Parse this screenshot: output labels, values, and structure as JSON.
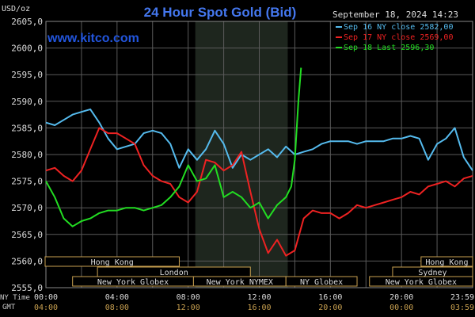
{
  "chart_data": {
    "type": "line",
    "title": "24 Hour Spot Gold (Bid)",
    "watermark": "www.kitco.com",
    "datetime": "September 18, 2024 14:23",
    "yunit": "USD/oz",
    "ylim": [
      2555.0,
      2605.0
    ],
    "yticks": [
      "2605,0",
      "2600,0",
      "2595,0",
      "2590,0",
      "2585,0",
      "2580,0",
      "2575,0",
      "2570,0",
      "2565,0",
      "2560,0",
      "2555,0"
    ],
    "xlim": [
      0,
      24
    ],
    "xticks_ny": [
      "00:00",
      "04:00",
      "08:00",
      "12:00",
      "16:00",
      "20:00",
      "23:59"
    ],
    "xticks_gmt": [
      "04:00",
      "08:00",
      "12:00",
      "16:00",
      "20:00",
      "00:00",
      "03:59"
    ],
    "ny_time_label": "NY Time",
    "gmt_label": "GMT",
    "shaded_hours": [
      8.4,
      13.6
    ],
    "grid": true,
    "legend_position": "top-right",
    "series": [
      {
        "name": "Sep 16 NY close 2582,00",
        "color": "#55bbee",
        "x": [
          0,
          0.5,
          1,
          1.5,
          2,
          2.5,
          3,
          3.5,
          4,
          4.5,
          5,
          5.5,
          6,
          6.5,
          7,
          7.5,
          8,
          8.5,
          9,
          9.5,
          10,
          10.5,
          11,
          11.5,
          12,
          12.5,
          13,
          13.5,
          14,
          14.5,
          15,
          15.5,
          16,
          16.5,
          17,
          17.5,
          18,
          18.5,
          19,
          19.5,
          20,
          20.5,
          21,
          21.5,
          22,
          22.5,
          23,
          23.5,
          24
        ],
        "y": [
          2586,
          2585.5,
          2586.5,
          2587.5,
          2588,
          2588.5,
          2586,
          2583,
          2581,
          2581.5,
          2582,
          2584,
          2584.5,
          2584,
          2582,
          2577.5,
          2581,
          2579,
          2581,
          2584.5,
          2582,
          2577.5,
          2580,
          2579,
          2580,
          2581,
          2579.5,
          2581.5,
          2580,
          2580.5,
          2581,
          2582,
          2582.5,
          2582.5,
          2582.5,
          2582,
          2582.5,
          2582.5,
          2582.5,
          2583,
          2583,
          2583.5,
          2583,
          2579,
          2582,
          2583,
          2585,
          2579.5,
          2577
        ]
      },
      {
        "name": "Sep 17 NY close 2569,00",
        "color": "#ee2222",
        "x": [
          0,
          0.5,
          1,
          1.5,
          2,
          2.5,
          3,
          3.5,
          4,
          4.5,
          5,
          5.5,
          6,
          6.5,
          7,
          7.5,
          8,
          8.5,
          9,
          9.5,
          10,
          10.5,
          11,
          11.5,
          12,
          12.5,
          13,
          13.5,
          14,
          14.5,
          15,
          15.5,
          16,
          16.5,
          17,
          17.5,
          18,
          18.5,
          19,
          19.5,
          20,
          20.5,
          21,
          21.5,
          22,
          22.5,
          23,
          23.5,
          24
        ],
        "y": [
          2577,
          2577.5,
          2576,
          2575,
          2577,
          2581,
          2585,
          2584,
          2584,
          2583,
          2582,
          2578,
          2576,
          2575,
          2574.5,
          2572,
          2571,
          2573,
          2579,
          2578.5,
          2577,
          2578,
          2580.5,
          2573,
          2566,
          2561.5,
          2564,
          2561,
          2562,
          2568,
          2569.5,
          2569,
          2569,
          2568,
          2569,
          2570.5,
          2570,
          2570.5,
          2571,
          2571.5,
          2572,
          2573,
          2572.5,
          2574,
          2574.5,
          2575,
          2574,
          2575.5,
          2576
        ]
      },
      {
        "name": "Sep 18 Last 2596,30",
        "color": "#22dd22",
        "x": [
          0,
          0.5,
          1,
          1.5,
          2,
          2.5,
          3,
          3.5,
          4,
          4.5,
          5,
          5.5,
          6,
          6.5,
          7,
          7.5,
          8,
          8.5,
          9,
          9.5,
          10,
          10.5,
          11,
          11.5,
          12,
          12.5,
          13,
          13.5,
          13.8,
          14,
          14.2,
          14.35
        ],
        "y": [
          2575,
          2572,
          2568,
          2566.5,
          2567.5,
          2568,
          2569,
          2569.5,
          2569.5,
          2570,
          2570,
          2569.5,
          2570,
          2570.5,
          2572,
          2574,
          2578,
          2575,
          2575.5,
          2578,
          2572,
          2573,
          2572,
          2570,
          2571,
          2568,
          2570.5,
          2572,
          2574,
          2579,
          2590,
          2596.3
        ]
      }
    ],
    "sessions": [
      {
        "label": "Hong Kong",
        "start": -0.3,
        "end": 7.5,
        "row": 0
      },
      {
        "label": "Hong Kong",
        "start": 21.1,
        "end": 24.6,
        "row": 0
      },
      {
        "label": "London",
        "start": 2.9,
        "end": 11.5,
        "row": 1
      },
      {
        "label": "Sydney",
        "start": 19.5,
        "end": 24.6,
        "row": 1
      },
      {
        "label": "New York Globex",
        "start": 1.5,
        "end": 8.3,
        "row": 2
      },
      {
        "label": "New York NYMEX",
        "start": 8.3,
        "end": 13.5,
        "row": 2
      },
      {
        "label": "NY Globex",
        "start": 13.5,
        "end": 17.5,
        "row": 2
      },
      {
        "label": "New York Globex",
        "start": 18.2,
        "end": 24.6,
        "row": 2
      }
    ]
  }
}
